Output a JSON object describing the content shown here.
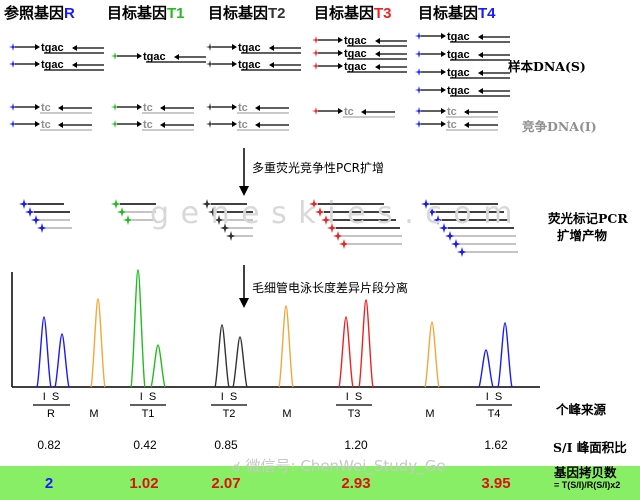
{
  "colors": {
    "reference": "#1a1aff",
    "target1": "#22bb22",
    "target2": "#333333",
    "target3": "#ee2222",
    "target4": "#1a1aff",
    "marker": "#f0a838",
    "copy_value": "#dd1111",
    "reference_copy_value": "#1a1aff",
    "bottom_band": "#88ee66",
    "competitor_label": "#909090"
  },
  "headers": [
    {
      "prefix": "参照基因",
      "suffix": "R",
      "color": "#1a1aff"
    },
    {
      "prefix": "目标基因",
      "suffix": "T1",
      "color": "#22bb22"
    },
    {
      "prefix": "目标基因",
      "suffix": "T2",
      "color": "#333333"
    },
    {
      "prefix": "目标基因",
      "suffix": "T3",
      "color": "#ee2222"
    },
    {
      "prefix": "目标基因",
      "suffix": "T4",
      "color": "#1a1aff"
    }
  ],
  "sequence_labels": {
    "sample": "tgac",
    "competitor": "tc"
  },
  "right_labels": {
    "sample_dna": "样本DNA(S)",
    "competitor_dna": "竞争DNA(I)",
    "amplified_line1": "荧光标记PCR",
    "amplified_line2": "扩增产物",
    "peak_source": "个峰来源",
    "ratio": "S/I 峰面积比",
    "copy_number": "基因拷贝数",
    "formula": "= T(S/I)/R(S/I)x2"
  },
  "steps": {
    "pcr": "多重荧光竞争性PCR扩增",
    "electrophoresis": "毛细管电泳长度差异片段分离"
  },
  "watermark": "g e n e s k i e s . c o m",
  "wechat_watermark": "微信号: ChenWei_Study_Ge",
  "axis_groups": [
    {
      "peaks": [
        "I",
        "S"
      ],
      "name": "R"
    },
    {
      "peaks": [],
      "name": "M"
    },
    {
      "peaks": [
        "I",
        "S"
      ],
      "name": "T1"
    },
    {
      "peaks": [
        "I",
        "S"
      ],
      "name": "T2"
    },
    {
      "peaks": [],
      "name": "M"
    },
    {
      "peaks": [
        "I",
        "S"
      ],
      "name": "T3"
    },
    {
      "peaks": [],
      "name": "M"
    },
    {
      "peaks": [
        "I",
        "S"
      ],
      "name": "T4"
    }
  ],
  "ratios": [
    "0.82",
    "0.42",
    "0.85",
    "1.20",
    "1.62"
  ],
  "copy_numbers": [
    "2",
    "1.02",
    "2.07",
    "2.93",
    "3.95"
  ]
}
